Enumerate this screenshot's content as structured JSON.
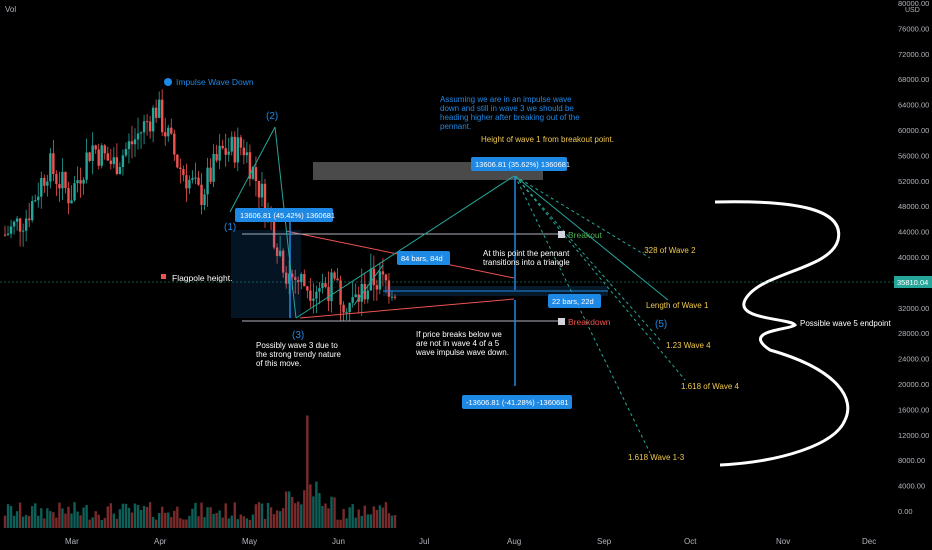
{
  "header": {
    "indicator": "Vol",
    "currency": "USD"
  },
  "price_axis": {
    "ticks": [
      "80000.00",
      "76000.00",
      "72000.00",
      "68000.00",
      "64000.00",
      "60000.00",
      "56000.00",
      "52000.00",
      "48000.00",
      "44000.00",
      "40000.00",
      "36000.00",
      "32000.00",
      "28000.00",
      "24000.00",
      "20000.00",
      "16000.00",
      "12000.00",
      "8000.00",
      "4000.00",
      "0.00"
    ],
    "current_price": "35810.04"
  },
  "time_axis": {
    "ticks": [
      "Mar",
      "Apr",
      "May",
      "Jun",
      "Jul",
      "Aug",
      "Sep",
      "Oct",
      "Nov",
      "Dec"
    ]
  },
  "annotations": {
    "impulse_title": "Impulse Wave Down",
    "wave_labels": {
      "w1": "(1)",
      "w2": "(2)",
      "w3": "(3)",
      "w5": "(5)"
    },
    "assumption_note": [
      "Assuming we are in an impulse wave",
      "down and still in wave 3 we should be",
      "heading higher after breaking out of the",
      "pennant."
    ],
    "height_note": "Height of wave 1 from breakout point.",
    "flagpole": "Flagpole height.",
    "pennant_note": [
      "At this point the pennant",
      "transitions into a triangle"
    ],
    "wave3_note": [
      "Possibly wave 3 due to",
      "the strong trendy nature",
      "of this move."
    ],
    "breakdown_note": [
      "If price breaks below we",
      "are not in wave 4 of a 5",
      "wave impulse wave down."
    ],
    "endpoint_note": "Possible  wave 5 endpoint",
    "breakout_label": "Breakout",
    "breakdown_label": "Breakdown",
    "fib_labels": [
      ".328 of Wave 2",
      "Length of Wave 1",
      "1.23 Wave 4",
      "1.618 of Wave 4",
      "1.618 Wave 1-3"
    ]
  },
  "measures": {
    "m1": "13606.81 (45.42%) 1360681",
    "m2": "13606.81 (35.62%) 1360681",
    "m3": "-13606.81 (-41.28%) -1360681",
    "bars1": "84 bars, 84d",
    "bars2": "22 bars, 22d"
  },
  "colors": {
    "up": "#26a69a",
    "down": "#ef5350",
    "measure": "#1e88e5",
    "fib": "#f2c94c",
    "breakout": "#4caf50",
    "breakdown": "#ef5350",
    "background": "#000000"
  },
  "chart_data": {
    "type": "candlestick",
    "symbol_currency": "USD",
    "ylim": [
      0,
      80000
    ],
    "x_range": [
      "Feb",
      "Dec"
    ],
    "current_price": 35810.04,
    "breakout_level": 44000,
    "breakdown_level": 29800,
    "wave1_height": 13606.81,
    "close_series": [
      {
        "month": "Feb",
        "close": 44000
      },
      {
        "month": "Feb",
        "close": 47000
      },
      {
        "month": "Mar",
        "close": 55000
      },
      {
        "month": "Mar",
        "close": 50000
      },
      {
        "month": "Mar",
        "close": 58000
      },
      {
        "month": "Mar",
        "close": 55000
      },
      {
        "month": "Apr",
        "close": 59000
      },
      {
        "month": "Apr",
        "close": 64000
      },
      {
        "month": "Apr",
        "close": 55000
      },
      {
        "month": "Apr",
        "close": 50000
      },
      {
        "month": "May",
        "close": 57000
      },
      {
        "month": "May",
        "close": 58000
      },
      {
        "month": "May",
        "close": 49000
      },
      {
        "month": "May",
        "close": 38000
      },
      {
        "month": "May",
        "close": 36000
      },
      {
        "month": "Jun",
        "close": 36000
      },
      {
        "month": "Jun",
        "close": 33000
      },
      {
        "month": "Jun",
        "close": 37000
      },
      {
        "month": "Jun",
        "close": 35810.04
      }
    ]
  }
}
